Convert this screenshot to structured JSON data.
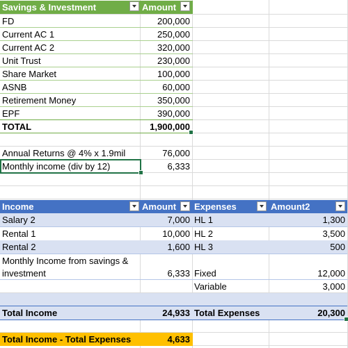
{
  "savings_table": {
    "header": {
      "label": "Savings & Investment",
      "amount": "Amount"
    },
    "rows": [
      {
        "label": "FD",
        "amount": "200,000"
      },
      {
        "label": "Current AC 1",
        "amount": "250,000"
      },
      {
        "label": "Current AC 2",
        "amount": "320,000"
      },
      {
        "label": "Unit Trust",
        "amount": "230,000"
      },
      {
        "label": "Share Market",
        "amount": "100,000"
      },
      {
        "label": "ASNB",
        "amount": "60,000"
      },
      {
        "label": "Retirement Money",
        "amount": "350,000"
      },
      {
        "label": "EPF",
        "amount": "390,000"
      }
    ],
    "total": {
      "label": "TOTAL",
      "amount": "1,900,000"
    }
  },
  "returns": {
    "annual": {
      "label": "Annual Returns @ 4% x 1.9mil",
      "value": "76,000"
    },
    "monthly": {
      "label": "Monthly income (div by 12)",
      "value": "6,333"
    }
  },
  "income_table": {
    "header": {
      "income": "Income",
      "amount": "Amount",
      "expenses": "Expenses",
      "amount2": "Amount2"
    },
    "rows": [
      {
        "income": "Salary 2",
        "amount": "7,000",
        "expenses": "HL 1",
        "amount2": "1,300"
      },
      {
        "income": "Rental 1",
        "amount": "10,000",
        "expenses": "HL 2",
        "amount2": "3,500"
      },
      {
        "income": "Rental 2",
        "amount": "1,600",
        "expenses": "HL 3",
        "amount2": "500"
      }
    ],
    "savings_income": {
      "line1": "Monthly Income from savings &",
      "line2": "investment",
      "amount": "6,333",
      "expenses": "Fixed",
      "amount2": "12,000"
    },
    "variable": {
      "expenses": "Variable",
      "amount2": "3,000"
    },
    "totals": {
      "income_label": "Total Income",
      "income_amount": "24,933",
      "expenses_label": "Total Expenses",
      "expenses_amount": "20,300"
    }
  },
  "net": {
    "label": "Total Income - Total Expenses",
    "value": "4,633"
  },
  "colors": {
    "green_header": "#70ad47",
    "blue_header": "#4472c4",
    "row_tint": "#d9e1f2",
    "highlight": "#ffc000",
    "selection": "#217346"
  }
}
